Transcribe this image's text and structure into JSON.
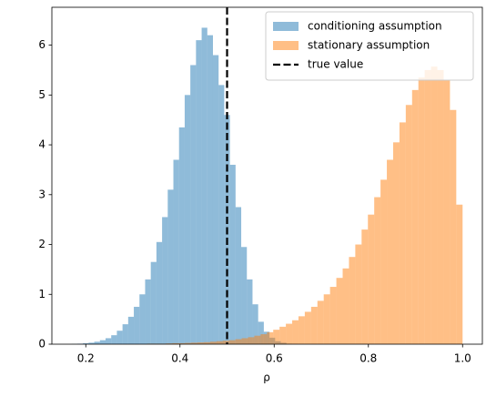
{
  "chart_data": {
    "type": "histogram",
    "xlabel": "ρ",
    "xlim": [
      0.128,
      1.042
    ],
    "ylim": [
      0,
      6.76
    ],
    "xticks": [
      0.2,
      0.4,
      0.6,
      0.8,
      {
        "value": 1.0,
        "label": "1.0"
      }
    ],
    "yticks": [
      0,
      1,
      2,
      3,
      4,
      5,
      6
    ],
    "opacity": 0.5,
    "legend": "upper right",
    "series": [
      {
        "name": "conditioning assumption",
        "color": "#1f77b4",
        "bins": [
          0.17,
          0.182,
          0.194,
          0.206,
          0.218,
          0.23,
          0.242,
          0.254,
          0.266,
          0.278,
          0.29,
          0.302,
          0.314,
          0.326,
          0.338,
          0.35,
          0.362,
          0.374,
          0.386,
          0.398,
          0.41,
          0.422,
          0.434,
          0.446,
          0.458,
          0.47,
          0.482,
          0.494,
          0.506,
          0.518,
          0.53,
          0.542,
          0.554,
          0.566,
          0.578,
          0.59,
          0.602,
          0.614,
          0.626,
          0.638,
          0.65
        ],
        "values": [
          0.005,
          0.01,
          0.02,
          0.03,
          0.05,
          0.08,
          0.12,
          0.18,
          0.27,
          0.4,
          0.55,
          0.75,
          1.0,
          1.3,
          1.65,
          2.05,
          2.55,
          3.1,
          3.7,
          4.35,
          5.0,
          5.6,
          6.1,
          6.35,
          6.2,
          5.8,
          5.2,
          4.6,
          3.6,
          2.75,
          1.95,
          1.3,
          0.8,
          0.45,
          0.25,
          0.13,
          0.06,
          0.03,
          0.01,
          0.005
        ]
      },
      {
        "name": "stationary assumption",
        "color": "#ff7f0e",
        "bins": [
          0.33,
          0.3434,
          0.3568,
          0.3702,
          0.3836,
          0.397,
          0.4104,
          0.4238,
          0.4372,
          0.4506,
          0.464,
          0.4774,
          0.4908,
          0.5042,
          0.5176,
          0.531,
          0.5444,
          0.5578,
          0.5712,
          0.5846,
          0.598,
          0.6114,
          0.6248,
          0.6382,
          0.6516,
          0.665,
          0.6784,
          0.6918,
          0.7052,
          0.7186,
          0.732,
          0.7454,
          0.7588,
          0.7722,
          0.7856,
          0.799,
          0.8124,
          0.8258,
          0.8392,
          0.8526,
          0.866,
          0.8794,
          0.8928,
          0.9062,
          0.9196,
          0.933,
          0.9464,
          0.9598,
          0.9732,
          0.9866,
          1.0
        ],
        "values": [
          0.01,
          0.01,
          0.01,
          0.015,
          0.02,
          0.02,
          0.025,
          0.03,
          0.035,
          0.04,
          0.05,
          0.06,
          0.07,
          0.08,
          0.1,
          0.12,
          0.14,
          0.17,
          0.2,
          0.24,
          0.29,
          0.35,
          0.41,
          0.48,
          0.56,
          0.65,
          0.75,
          0.87,
          1.0,
          1.15,
          1.33,
          1.52,
          1.75,
          2.0,
          2.3,
          2.6,
          2.95,
          3.3,
          3.7,
          4.05,
          4.45,
          4.8,
          5.1,
          5.35,
          5.5,
          5.57,
          5.5,
          5.3,
          4.7,
          2.8
        ]
      }
    ],
    "vline": {
      "name": "true value",
      "x": 0.5,
      "color": "#000000"
    }
  }
}
